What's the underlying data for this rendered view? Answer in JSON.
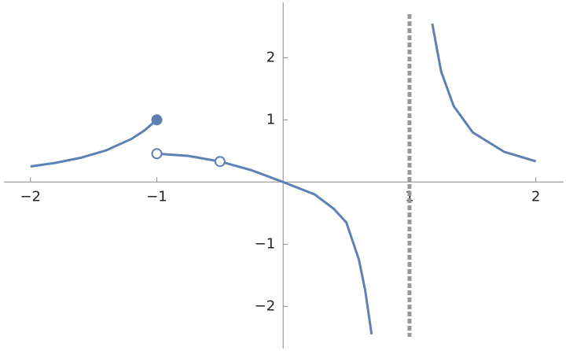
{
  "chart_data": {
    "type": "line",
    "xlim": [
      -2.21,
      2.22
    ],
    "ylim": [
      -2.68,
      2.89
    ],
    "xticks": [
      {
        "value": -2,
        "label": "−2"
      },
      {
        "value": -1,
        "label": "−1"
      },
      1,
      2
    ],
    "yticks": [
      {
        "value": -2,
        "label": "−2"
      },
      {
        "value": -1,
        "label": "−1"
      },
      1,
      2
    ],
    "color": "#5e81b5",
    "series": [
      {
        "x": [
          -2,
          -1.8,
          -1.6,
          -1.4,
          -1.2,
          -1.1,
          -1
        ],
        "values": [
          0.25,
          0.309,
          0.391,
          0.51,
          0.694,
          0.826,
          1
        ]
      },
      {
        "x": [
          -1,
          -0.75,
          -0.5,
          -0.25,
          0,
          0.25,
          0.4,
          0.5,
          0.6,
          0.65,
          0.7
        ],
        "values": [
          0.456,
          0.42,
          0.33,
          0.19,
          0,
          -0.2,
          -0.43,
          -0.65,
          -1.25,
          -1.75,
          -2.45
        ]
      },
      {
        "x": [
          1.18,
          1.25,
          1.35,
          1.5,
          1.75,
          2
        ],
        "values": [
          2.55,
          1.78,
          1.22,
          0.8,
          0.485,
          0.333
        ]
      }
    ],
    "points": [
      {
        "x": -1,
        "y": 1,
        "filled": true
      },
      {
        "x": -1,
        "y": 0.456,
        "filled": false
      },
      {
        "x": -0.5,
        "y": 0.33,
        "filled": false
      }
    ],
    "vertical_line": {
      "x": 1,
      "color": "#999999"
    }
  }
}
